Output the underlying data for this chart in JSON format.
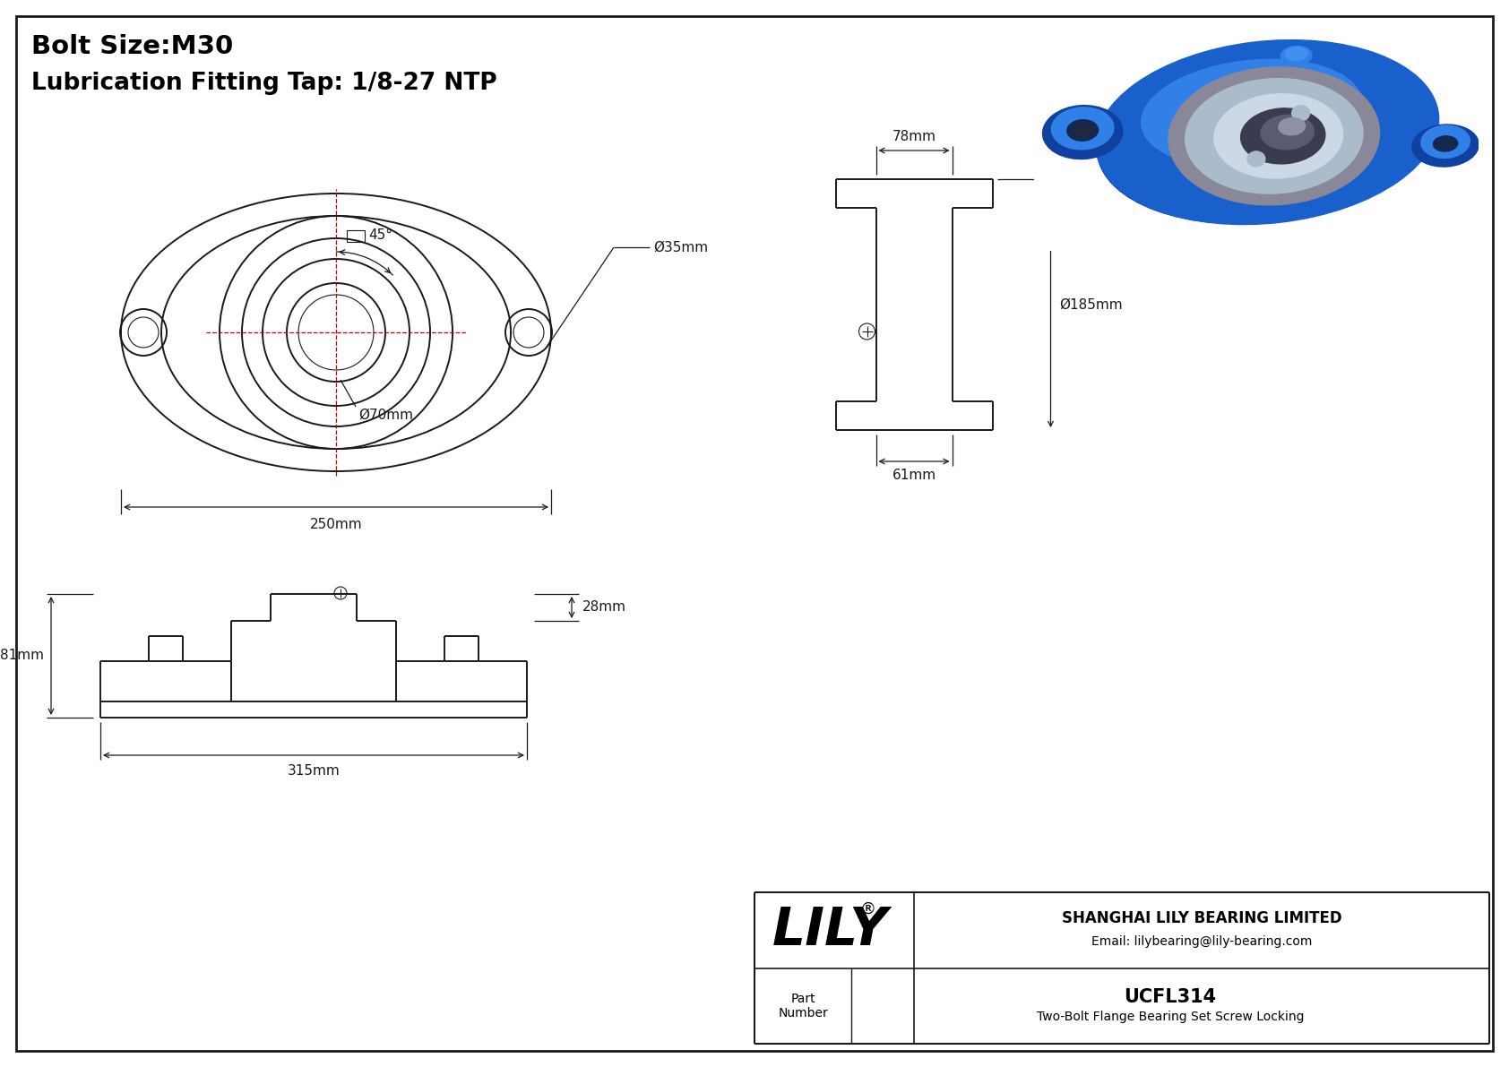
{
  "title_line1": "Bolt Size:M30",
  "title_line2": "Lubrication Fitting Tap: 1/8-27 NTP",
  "line_color": "#1a1a1a",
  "dim_color": "#1a1a1a",
  "red_color": "#cc0000",
  "part_number": "UCFL314",
  "part_description": "Two-Bolt Flange Bearing Set Screw Locking",
  "company_name": "SHANGHAI LILY BEARING LIMITED",
  "company_email": "Email: lilybearing@lily-bearing.com",
  "lily_text": "LILY",
  "registered": "®",
  "dims": {
    "bolt_hole_diameter": "Ø35mm",
    "bore_diameter": "Ø70mm",
    "overall_width": "250mm",
    "side_width": "78mm",
    "side_height": "Ø185mm",
    "side_bottom": "61mm",
    "front_height": "81mm",
    "front_width": "315mm",
    "front_depth": "28mm",
    "angle": "45°"
  }
}
